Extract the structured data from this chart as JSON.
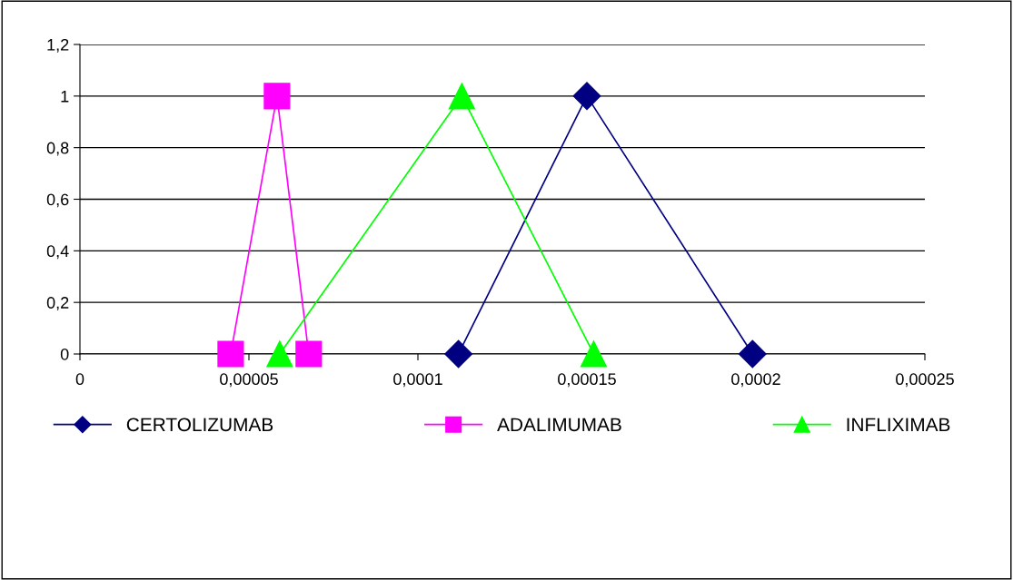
{
  "chart_data": {
    "type": "line",
    "line_style": "solid",
    "grid": "y",
    "legend": "bottom",
    "xlim": [
      0,
      0.00025
    ],
    "xticks": [
      0,
      {
        "value": 5e-05,
        "label": "0,00005"
      },
      {
        "value": 0.0001,
        "label": "0,0001"
      },
      {
        "value": 0.00015,
        "label": "0,00015"
      },
      {
        "value": 0.0002,
        "label": "0,0002"
      },
      {
        "value": 0.00025,
        "label": "0,00025"
      }
    ],
    "ylim": [
      0,
      1.2
    ],
    "yticks": [
      0,
      {
        "value": 0.2,
        "label": "0,2"
      },
      {
        "value": 0.4,
        "label": "0,4"
      },
      {
        "value": 0.6,
        "label": "0,6"
      },
      {
        "value": 0.8,
        "label": "0,8"
      },
      1,
      {
        "value": 1.2,
        "label": "1,2"
      }
    ],
    "series": [
      {
        "name": "CERTOLIZUMAB",
        "color": "#000080",
        "marker": "diamond",
        "x": [
          0.000112,
          0.00015,
          0.000199
        ],
        "values": [
          0,
          1,
          0
        ]
      },
      {
        "name": "ADALIMUMAB",
        "color": "#ff00ff",
        "marker": "square",
        "x": [
          4.46e-05,
          5.83e-05,
          6.77e-05
        ],
        "values": [
          0,
          1,
          0
        ]
      },
      {
        "name": "INFLIXIMAB",
        "color": "#00ff00",
        "marker": "triangle",
        "x": [
          5.91e-05,
          0.000113,
          0.000152
        ],
        "values": [
          0,
          1,
          0
        ]
      }
    ]
  }
}
